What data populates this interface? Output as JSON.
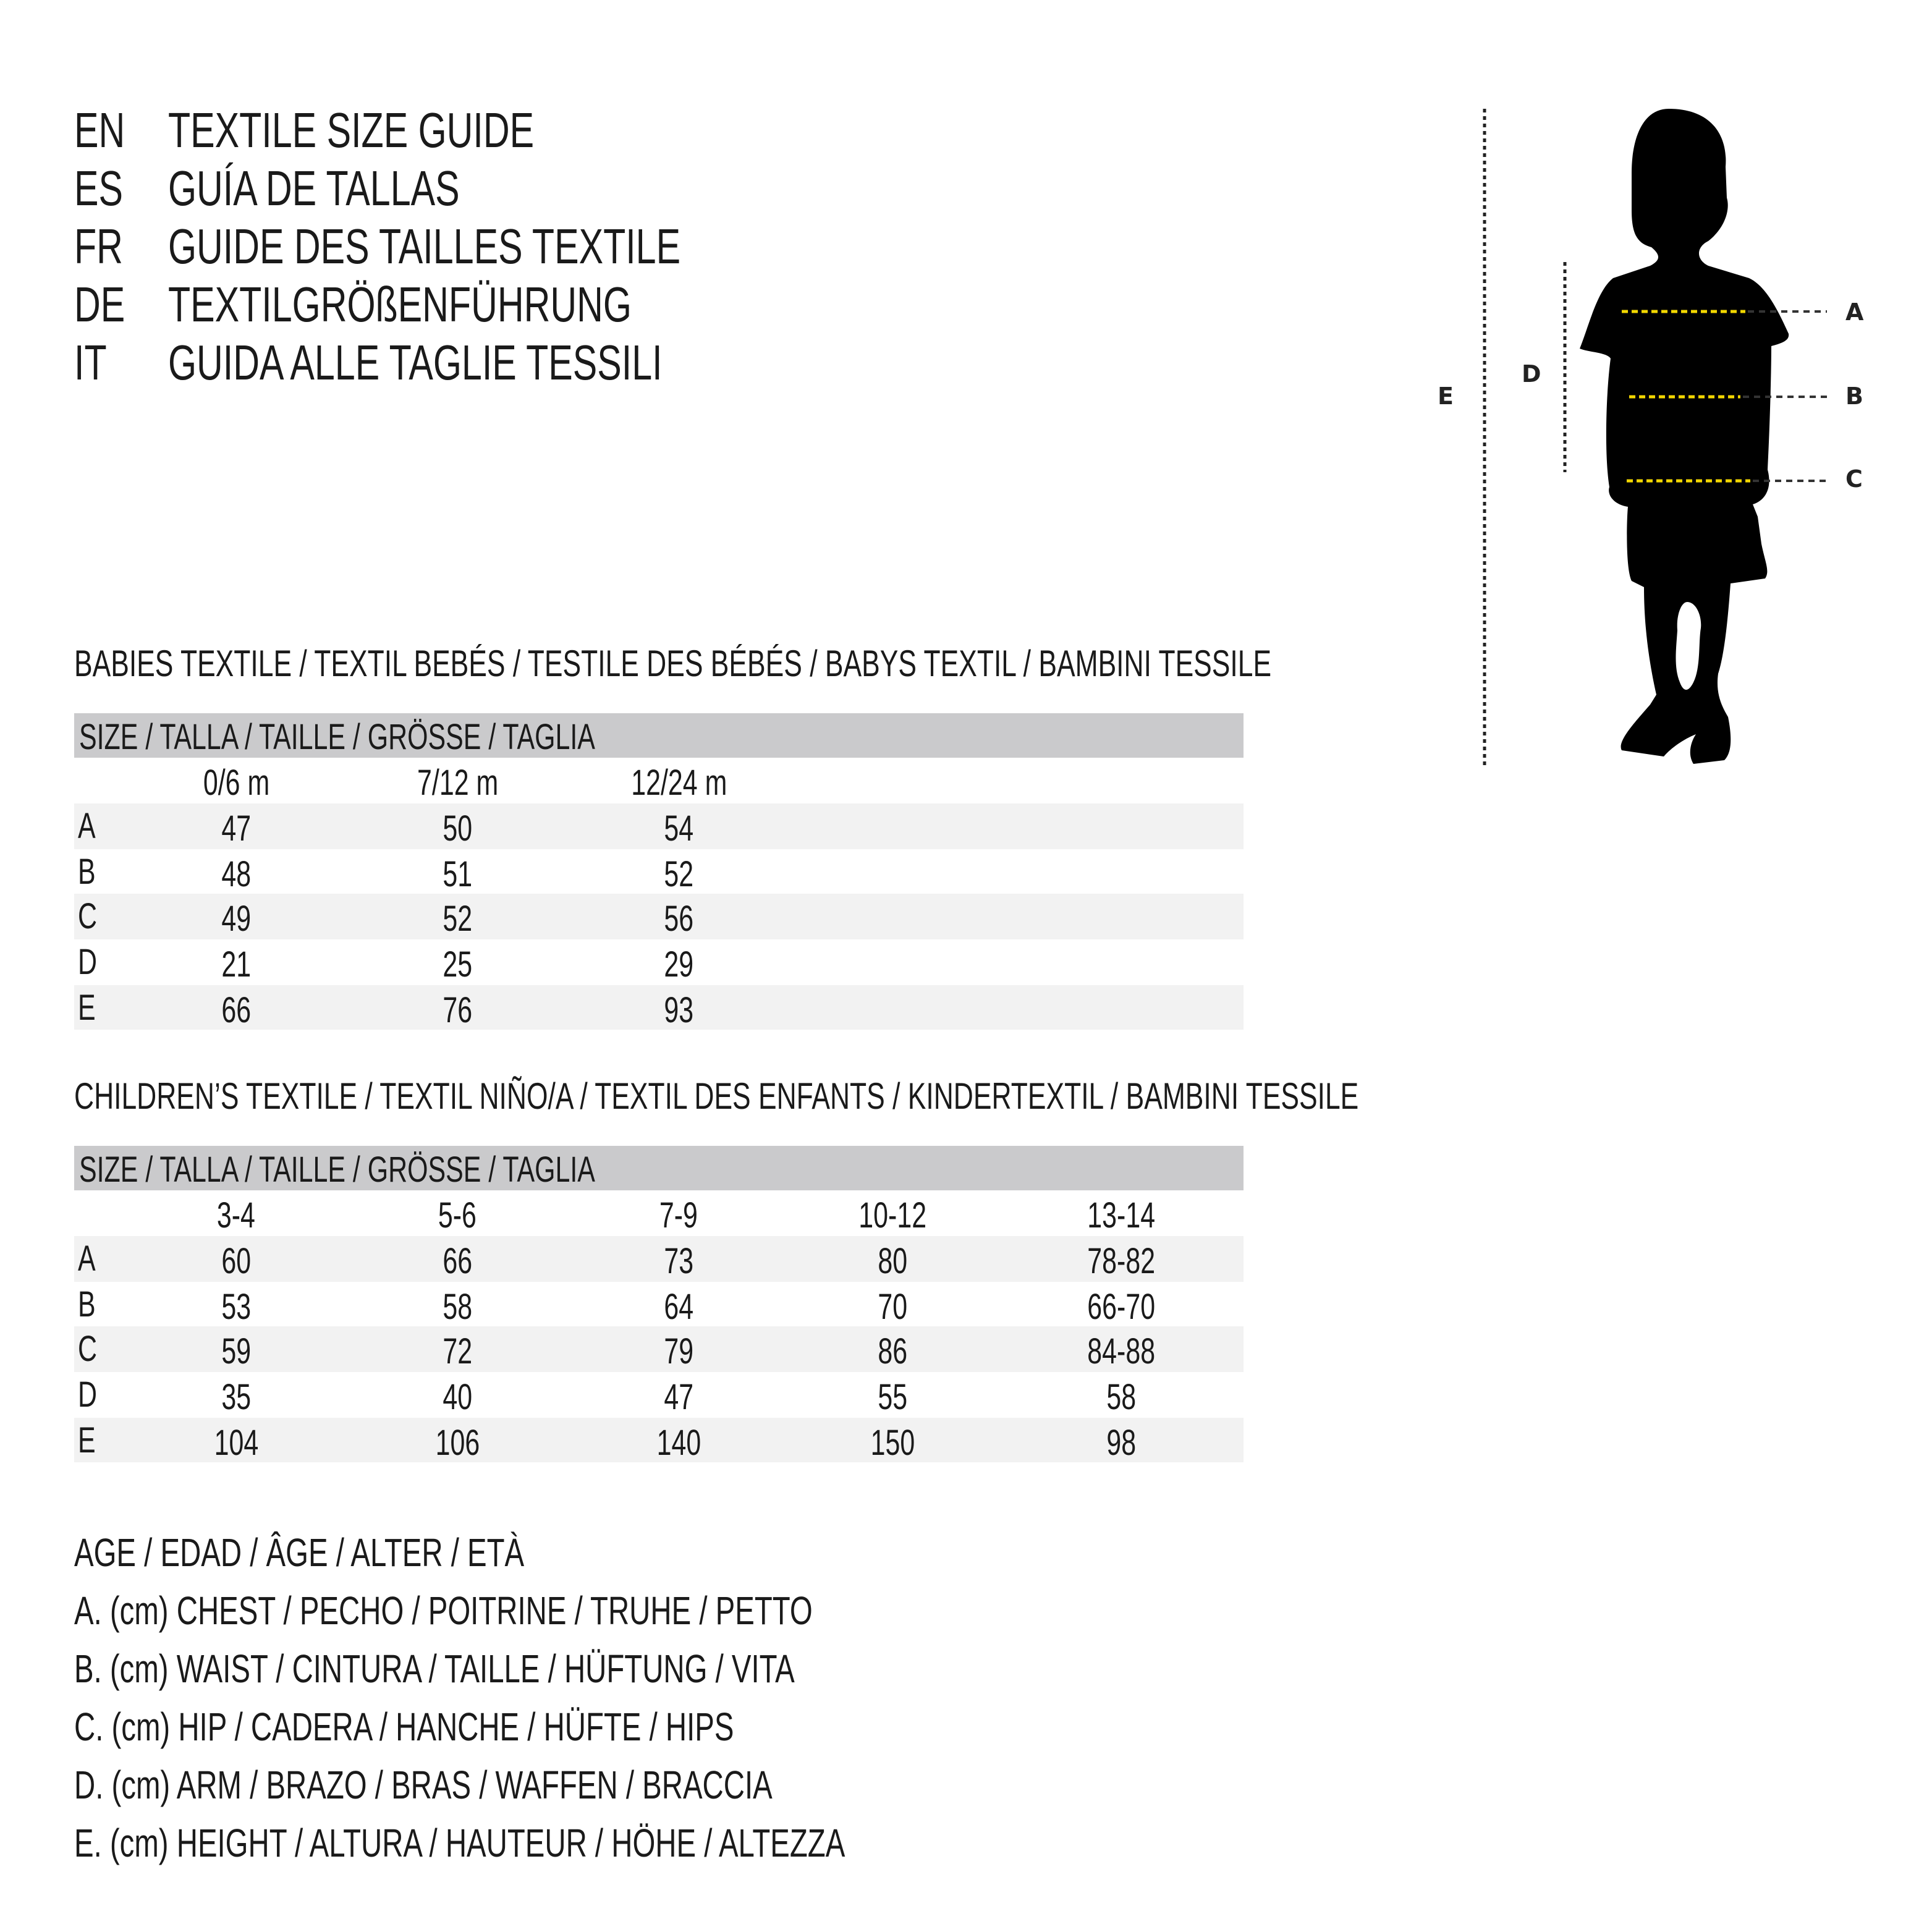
{
  "header": {
    "lines": [
      {
        "lang": "EN",
        "title": "TEXTILE SIZE GUIDE"
      },
      {
        "lang": "ES",
        "title": "GUÍA DE TALLAS"
      },
      {
        "lang": "FR",
        "title": "GUIDE DES TAILLES TEXTILE"
      },
      {
        "lang": "DE",
        "title": "TEXTILGRÖßENFÜHRUNG"
      },
      {
        "lang": "IT",
        "title": "GUIDA ALLE TAGLIE TESSILI"
      }
    ]
  },
  "diagram": {
    "labels": {
      "A": "A",
      "B": "B",
      "C": "C",
      "D": "D",
      "E": "E"
    },
    "colors": {
      "silhouette": "#000000",
      "measure_line": "#f2d600",
      "guide_line": "#222222"
    }
  },
  "tables": [
    {
      "heading": "BABIES TEXTILE / TEXTIL BEBÉS / TESTILE DES BÉBÉS / BABYS TEXTIL / BAMBINI TESSILE",
      "size_label": "SIZE / TALLA / TAILLE / GRÖSSE / TAGLIA",
      "columns": [
        "0/6 m",
        "7/12 m",
        "12/24 m"
      ],
      "rows": [
        {
          "label": "A",
          "values": [
            "47",
            "50",
            "54"
          ]
        },
        {
          "label": "B",
          "values": [
            "48",
            "51",
            "52"
          ]
        },
        {
          "label": "C",
          "values": [
            "49",
            "52",
            "56"
          ]
        },
        {
          "label": "D",
          "values": [
            "21",
            "25",
            "29"
          ]
        },
        {
          "label": "E",
          "values": [
            "66",
            "76",
            "93"
          ]
        }
      ]
    },
    {
      "heading": "CHILDREN’S TEXTILE / TEXTIL NIÑO/A / TEXTIL DES ENFANTS / KINDERTEXTIL / BAMBINI TESSILE",
      "size_label": "SIZE / TALLA / TAILLE / GRÖSSE / TAGLIA",
      "columns": [
        "3-4",
        "5-6",
        "7-9",
        "10-12",
        "13-14"
      ],
      "rows": [
        {
          "label": "A",
          "values": [
            "60",
            "66",
            "73",
            "80",
            "78-82"
          ]
        },
        {
          "label": "B",
          "values": [
            "53",
            "58",
            "64",
            "70",
            "66-70"
          ]
        },
        {
          "label": "C",
          "values": [
            "59",
            "72",
            "79",
            "86",
            "84-88"
          ]
        },
        {
          "label": "D",
          "values": [
            "35",
            "40",
            "47",
            "55",
            "58"
          ]
        },
        {
          "label": "E",
          "values": [
            "104",
            "106",
            "140",
            "150",
            "98"
          ]
        }
      ]
    }
  ],
  "legend": [
    "AGE / EDAD / ÂGE / ALTER / ETÀ",
    "A. (cm) CHEST / PECHO / POITRINE / TRUHE / PETTO",
    "B. (cm) WAIST / CINTURA / TAILLE / HÜFTUNG / VITA",
    "C. (cm) HIP / CADERA / HANCHE / HÜFTE / HIPS",
    "D. (cm) ARM / BRAZO / BRAS / WAFFEN / BRACCIA",
    "E. (cm) HEIGHT / ALTURA / HAUTEUR / HÖHE / ALTEZZA"
  ]
}
